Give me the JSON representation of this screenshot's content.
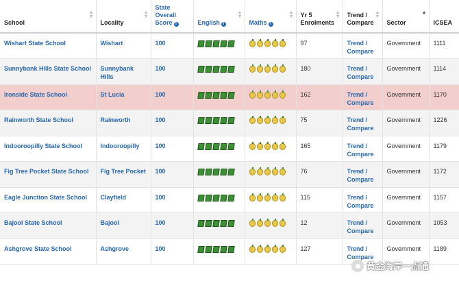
{
  "headers": {
    "school": "School",
    "locality": "Locality",
    "score": "State Overall Score",
    "english": "English",
    "maths": "Maths",
    "enrolments": "Yr 5 Enrolments",
    "trend": "Trend / Compare",
    "sector": "Sector",
    "icsea": "ICSEA"
  },
  "icons": {
    "english": "book-icon",
    "maths": "apple-icon",
    "info": "info-icon"
  },
  "colors": {
    "link": "#2767b0",
    "highlight_row": "#f2cfcd",
    "book": "#3d8f35",
    "apple": "#e8c84a"
  },
  "rows": [
    {
      "school": "Wishart State School",
      "locality": "Wishart",
      "score": "100",
      "english_rating": 5,
      "maths_rating": 5,
      "enrolments": "97",
      "trend": "Trend / Compare",
      "sector": "Government",
      "icsea": "1111"
    },
    {
      "school": "Sunnybank Hills State School",
      "locality": "Sunnybank Hills",
      "score": "100",
      "english_rating": 5,
      "maths_rating": 5,
      "enrolments": "180",
      "trend": "Trend / Compare",
      "sector": "Government",
      "icsea": "1114"
    },
    {
      "school": "Ironside State School",
      "locality": "St Lucia",
      "score": "100",
      "english_rating": 5,
      "maths_rating": 5,
      "enrolments": "162",
      "trend": "Trend / Compare",
      "sector": "Government",
      "icsea": "1170",
      "highlighted": true
    },
    {
      "school": "Rainworth State School",
      "locality": "Rainworth",
      "score": "100",
      "english_rating": 5,
      "maths_rating": 5,
      "enrolments": "75",
      "trend": "Trend / Compare",
      "sector": "Government",
      "icsea": "1226"
    },
    {
      "school": "Indooroopilly State School",
      "locality": "Indooroopilly",
      "score": "100",
      "english_rating": 5,
      "maths_rating": 5,
      "enrolments": "165",
      "trend": "Trend / Compare",
      "sector": "Government",
      "icsea": "1179"
    },
    {
      "school": "Fig Tree Pocket State School",
      "locality": "Fig Tree Pocket",
      "score": "100",
      "english_rating": 5,
      "maths_rating": 5,
      "enrolments": "76",
      "trend": "Trend / Compare",
      "sector": "Government",
      "icsea": "1172"
    },
    {
      "school": "Eagle Junction State School",
      "locality": "Clayfield",
      "score": "100",
      "english_rating": 5,
      "maths_rating": 5,
      "enrolments": "115",
      "trend": "Trend / Compare",
      "sector": "Government",
      "icsea": "1157"
    },
    {
      "school": "Bajool State School",
      "locality": "Bajool",
      "score": "100",
      "english_rating": 5,
      "maths_rating": 5,
      "enrolments": "12",
      "trend": "Trend / Compare",
      "sector": "Government",
      "icsea": "1053"
    },
    {
      "school": "Ashgrove State School",
      "locality": "Ashgrove",
      "score": "100",
      "english_rating": 5,
      "maths_rating": 5,
      "enrolments": "127",
      "trend": "Trend / Compare",
      "sector": "Government",
      "icsea": "1189"
    }
  ],
  "watermark": {
    "text": "黄金海岸一点通"
  }
}
